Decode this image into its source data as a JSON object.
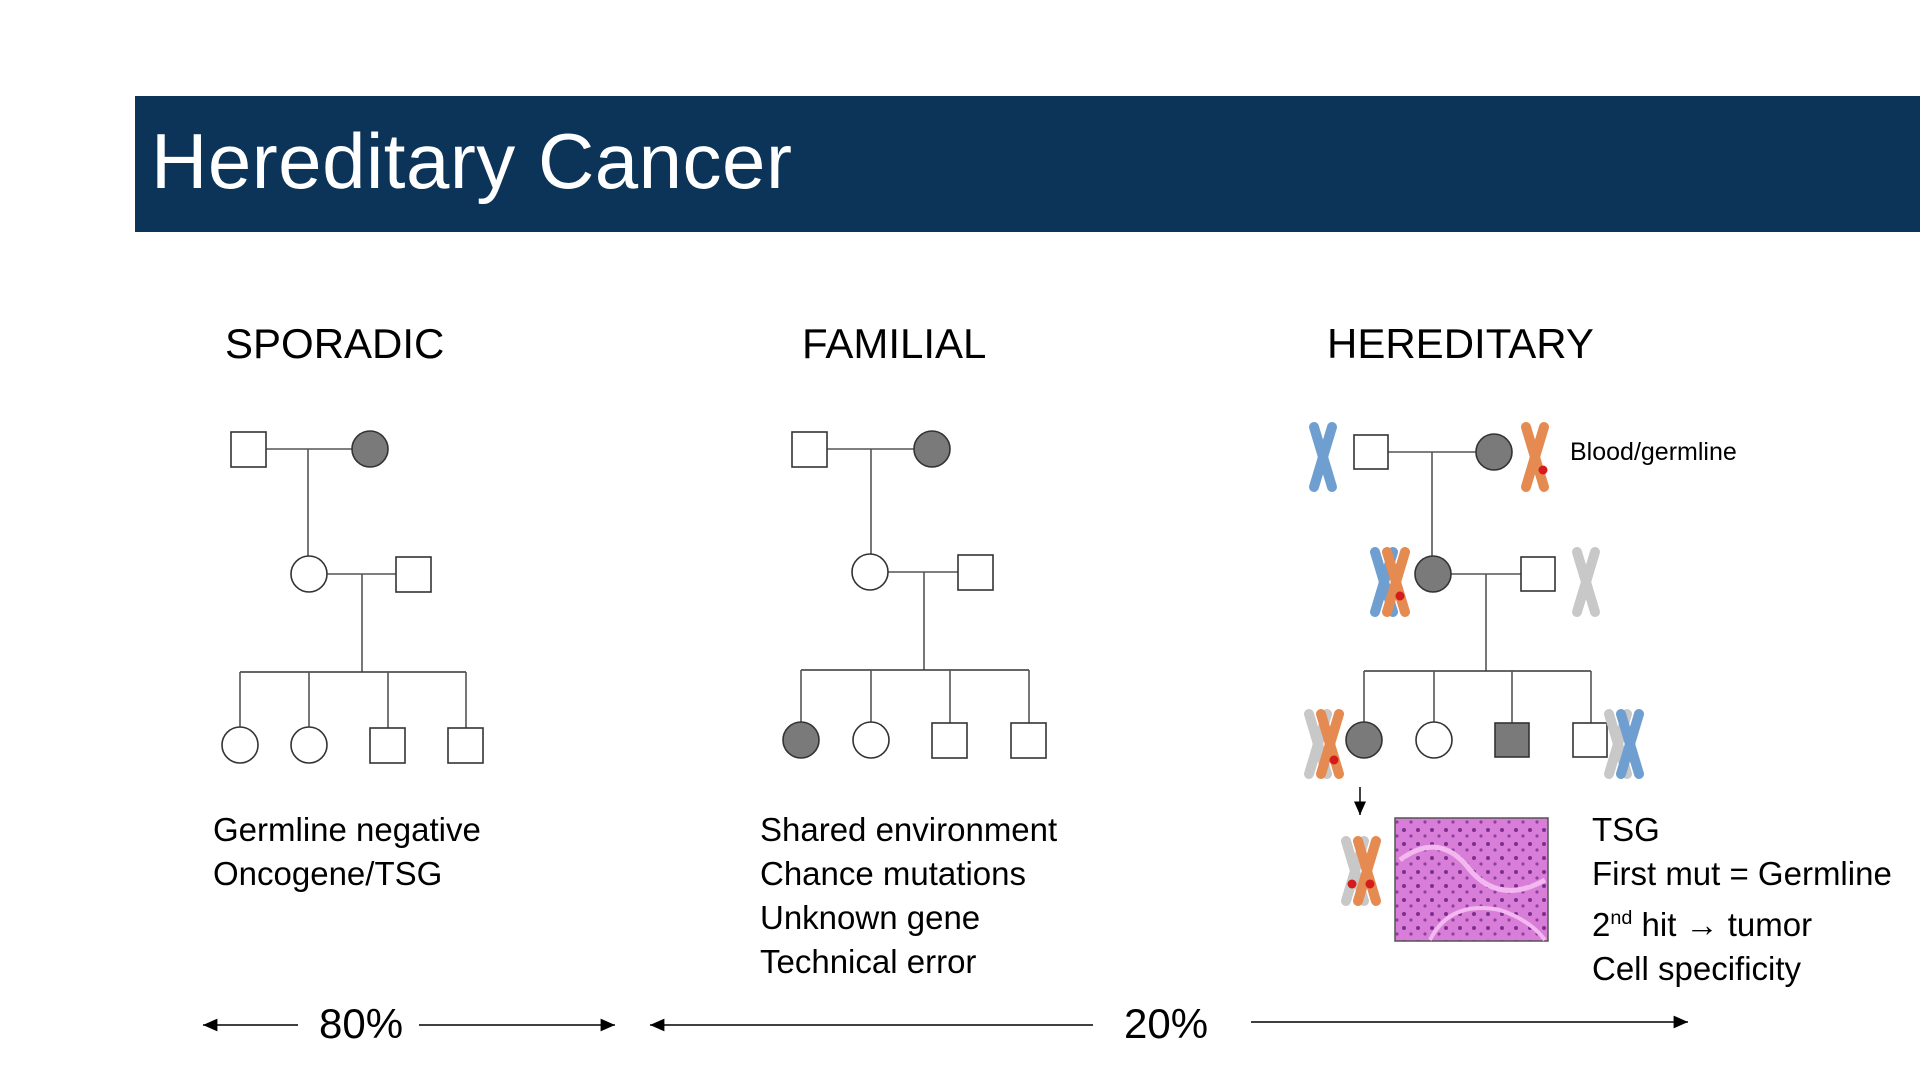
{
  "title": "Hereditary Cancer",
  "columns": [
    {
      "heading": "SPORADIC",
      "notes": [
        "Germline negative",
        "Oncogene/TSG"
      ]
    },
    {
      "heading": "FAMILIAL",
      "notes": [
        "Shared environment",
        "Chance mutations",
        "Unknown gene",
        "Technical error"
      ]
    },
    {
      "heading": "HEREDITARY",
      "notes": [
        "TSG",
        "First mut = Germline"
      ],
      "second_hit": {
        "prefix": "2",
        "sup": "nd",
        "rest": " hit → tumor"
      },
      "last_note": "Cell specificity"
    }
  ],
  "germline_label": "Blood/germline",
  "percent_left": "80%",
  "percent_right": "20%",
  "colors": {
    "title_bar": "#0c3459",
    "affected": "#7a7a7a",
    "chromosome_blue": "#6f9fd0",
    "chromosome_orange": "#e58a50",
    "chromosome_gray": "#c8c8c8",
    "mutation": "#d41c1c",
    "tissue": "#c667c8"
  }
}
